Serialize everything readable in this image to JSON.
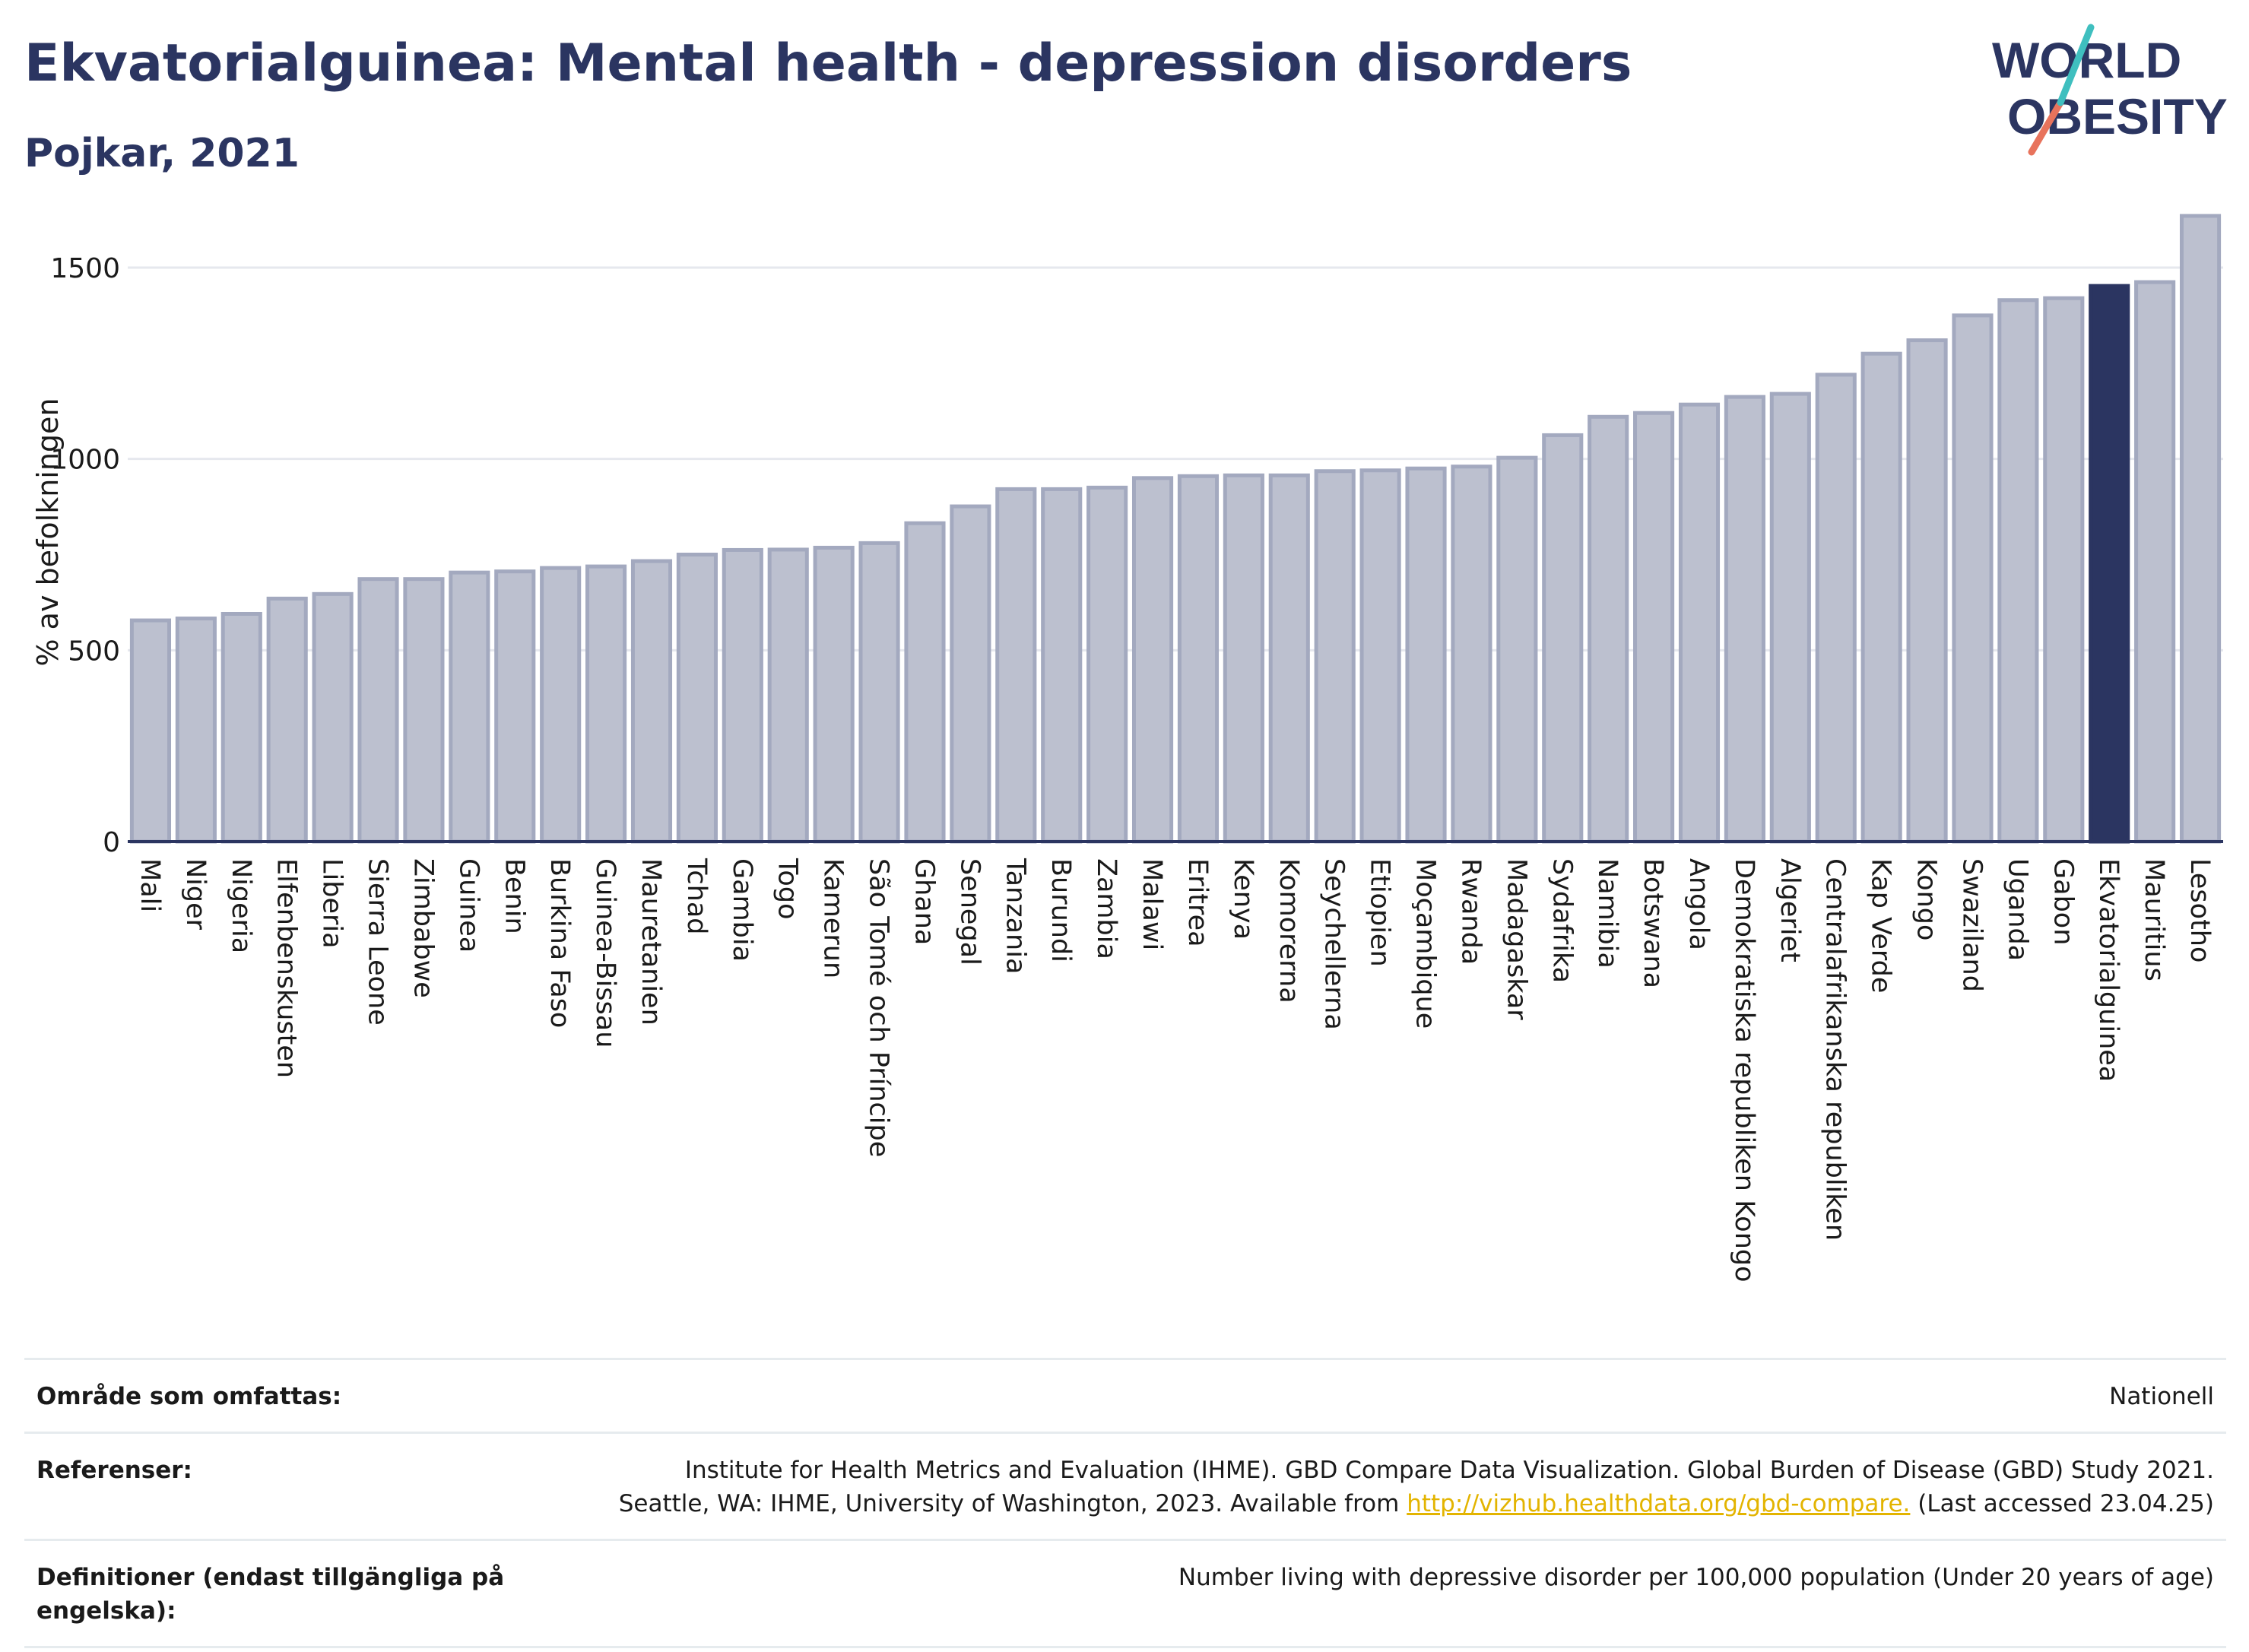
{
  "title": "Ekvatorialguinea: Mental health - depression disorders",
  "subtitle": "Pojkar, 2021",
  "logo": {
    "line1": "WORLD",
    "line2": "OBESITY"
  },
  "colors": {
    "bar": "#bcc0cf",
    "bar_stroke": "#a3a9bf",
    "highlight": "#2b3561",
    "grid": "#e6e8ee",
    "axis": "#2b3561"
  },
  "chart_data": {
    "type": "bar",
    "title": "Ekvatorialguinea: Mental health - depression disorders",
    "subtitle": "Pojkar, 2021",
    "ylabel": "% av befolkningen",
    "xlabel": "",
    "ylim": [
      0,
      1700
    ],
    "yticks": [
      0,
      500,
      1000,
      1500
    ],
    "highlight": "Ekvatorialguinea",
    "grid": true,
    "categories": [
      "Mali",
      "Niger",
      "Nigeria",
      "Elfenbenskusten",
      "Liberia",
      "Sierra Leone",
      "Zimbabwe",
      "Guinea",
      "Benin",
      "Burkina Faso",
      "Guinea-Bissau",
      "Mauretanien",
      "Tchad",
      "Gambia",
      "Togo",
      "Kamerun",
      "São Tomé och Príncipe",
      "Ghana",
      "Senegal",
      "Tanzania",
      "Burundi",
      "Zambia",
      "Malawi",
      "Eritrea",
      "Kenya",
      "Komorerna",
      "Seychellerna",
      "Etiopien",
      "Moçambique",
      "Rwanda",
      "Madagaskar",
      "Sydafrika",
      "Namibia",
      "Botswana",
      "Angola",
      "Demokratiska republiken Kongo",
      "Algeriet",
      "Centralafrikanska republiken",
      "Kap Verde",
      "Kongo",
      "Swaziland",
      "Uganda",
      "Gabon",
      "Ekvatorialguinea",
      "Mauritius",
      "Lesotho"
    ],
    "values": [
      578,
      583,
      595,
      635,
      647,
      686,
      686,
      703,
      706,
      715,
      719,
      733,
      750,
      762,
      763,
      768,
      780,
      832,
      876,
      921,
      921,
      925,
      950,
      955,
      957,
      957,
      968,
      970,
      975,
      980,
      1003,
      1062,
      1110,
      1120,
      1142,
      1162,
      1170,
      1220,
      1275,
      1310,
      1375,
      1415,
      1420,
      1452,
      1462,
      1635
    ]
  },
  "footer": {
    "area_label": "Område som omfattas:",
    "area_value": "Nationell",
    "ref_label": "Referenser:",
    "ref_line1": "Institute for Health Metrics and Evaluation (IHME). GBD Compare Data Visualization. Global Burden of Disease (GBD) Study 2021.",
    "ref_line2_pre": "Seattle, WA: IHME, University of Washington, 2023. Available from ",
    "ref_link": "http://vizhub.healthdata.org/gbd-compare.",
    "ref_line2_post": " (Last accessed 23.04.25)",
    "def_label": "Definitioner (endast tillgängliga på engelska):",
    "def_value": "Number living with depressive disorder per 100,000 population (Under 20 years of age)"
  }
}
